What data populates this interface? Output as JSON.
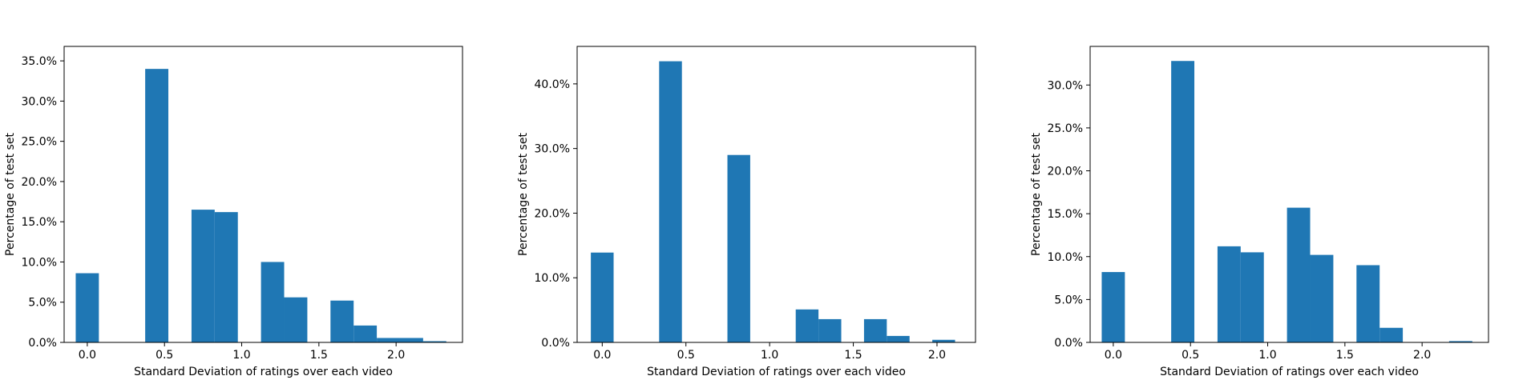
{
  "bar_color": "#1f77b4",
  "chart_data": [
    {
      "type": "bar",
      "title": "",
      "xlabel": "Standard Deviation of ratings over each video",
      "ylabel": "Percentage of test set",
      "xlim": [
        -0.15,
        2.43
      ],
      "ylim": [
        0,
        36.8
      ],
      "xticks": [
        0.0,
        0.5,
        1.0,
        1.5,
        2.0
      ],
      "xtick_labels": [
        "0.0",
        "0.5",
        "1.0",
        "1.5",
        "2.0"
      ],
      "yticks": [
        0,
        5,
        10,
        15,
        20,
        25,
        30,
        35
      ],
      "ytick_labels": [
        "0.0%",
        "5.0%",
        "10.0%",
        "15.0%",
        "20.0%",
        "25.0%",
        "30.0%",
        "35.0%"
      ],
      "bin_edges": [
        -0.075,
        0.075,
        0.225,
        0.375,
        0.525,
        0.675,
        0.825,
        0.975,
        1.125,
        1.275,
        1.425,
        1.575,
        1.725,
        1.875,
        2.025,
        2.175,
        2.325
      ],
      "values": [
        8.6,
        0.0,
        0.0,
        34.0,
        0.0,
        16.5,
        16.2,
        0.0,
        10.0,
        5.6,
        0.0,
        5.2,
        2.1,
        0.55,
        0.55,
        0.15
      ]
    },
    {
      "type": "bar",
      "title": "",
      "xlabel": "Standard Deviation of ratings over each video",
      "ylabel": "Percentage of test set",
      "xlim": [
        -0.15,
        2.23
      ],
      "ylim": [
        0,
        45.8
      ],
      "xticks": [
        0.0,
        0.5,
        1.0,
        1.5,
        2.0
      ],
      "xtick_labels": [
        "0.0",
        "0.5",
        "1.0",
        "1.5",
        "2.0"
      ],
      "yticks": [
        0,
        10,
        20,
        30,
        40
      ],
      "ytick_labels": [
        "0.0%",
        "10.0%",
        "20.0%",
        "30.0%",
        "40.0%"
      ],
      "bin_edges": [
        -0.068,
        0.068,
        0.204,
        0.34,
        0.476,
        0.612,
        0.748,
        0.884,
        1.02,
        1.156,
        1.292,
        1.428,
        1.564,
        1.7,
        1.836,
        1.972,
        2.108
      ],
      "values": [
        13.9,
        0.0,
        0.0,
        43.5,
        0.0,
        0.0,
        29.0,
        0.0,
        0.0,
        5.1,
        3.6,
        0.0,
        3.6,
        1.0,
        0.0,
        0.4
      ]
    },
    {
      "type": "bar",
      "title": "",
      "xlabel": "Standard Deviation of ratings over each video",
      "ylabel": "Percentage of test set",
      "xlim": [
        -0.15,
        2.43
      ],
      "ylim": [
        0,
        34.5
      ],
      "xticks": [
        0.0,
        0.5,
        1.0,
        1.5,
        2.0
      ],
      "xtick_labels": [
        "0.0",
        "0.5",
        "1.0",
        "1.5",
        "2.0"
      ],
      "yticks": [
        0,
        5,
        10,
        15,
        20,
        25,
        30
      ],
      "ytick_labels": [
        "0.0%",
        "5.0%",
        "10.0%",
        "15.0%",
        "20.0%",
        "25.0%",
        "30.0%"
      ],
      "bin_edges": [
        -0.075,
        0.075,
        0.225,
        0.375,
        0.525,
        0.675,
        0.825,
        0.975,
        1.125,
        1.275,
        1.425,
        1.575,
        1.725,
        1.875,
        2.025,
        2.175,
        2.325
      ],
      "values": [
        8.2,
        0.0,
        0.0,
        32.8,
        0.0,
        11.2,
        10.5,
        0.0,
        15.7,
        10.2,
        0.0,
        9.0,
        1.7,
        0.0,
        0.0,
        0.15
      ]
    }
  ]
}
